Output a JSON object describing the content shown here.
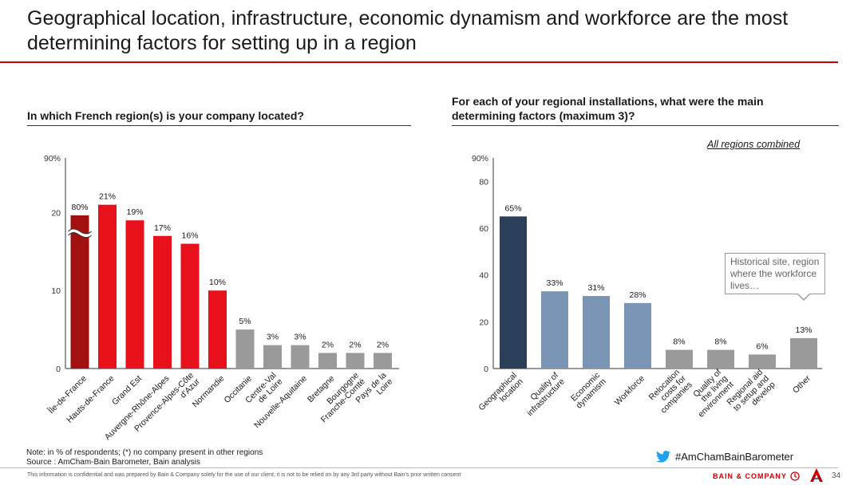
{
  "title": "Geographical location, infrastructure, economic dynamism and workforce are the most determining factors for setting up in a region",
  "left_question": "In which French region(s) is your company located?",
  "right_question": "For each of your regional installations, what were the main determining factors (maximum 3)?",
  "right_subnote": "All regions combined",
  "callout_text": "Historical site, region where the workforce lives…",
  "note_line1": "Note: in % of respondents; (*) no company present in other regions",
  "note_line2": "Source : AmCham-Bain Barometer, Bain analysis",
  "hashtag": "#AmChamBainBarometer",
  "disclaimer": "This information is confidential and was prepared by Bain & Company solely for the use of our client; it is not to be relied on by any 3rd party without Bain's prior written consent",
  "brand": "BAIN & COMPANY",
  "page_number": "34",
  "icons": {
    "twitter": "bird-icon",
    "brand": "bain-logo-icon",
    "partner": "amcham-logo-icon"
  },
  "colors": {
    "dark_red": "#a31010",
    "red": "#e8101a",
    "gray": "#9a9a9a",
    "navy": "#2a4058",
    "steel": "#7a94b3",
    "rule_red": "#cc0000"
  },
  "chart_data": [
    {
      "type": "bar",
      "axis_break": true,
      "categories": [
        "Île-de-France",
        "Hauts-de-France",
        "Grand Est",
        "Auvergne-Rhône-Alpes",
        "Provence-Alpes-Côte d'Azur",
        "Normandie",
        "Occitanie",
        "Centre-Val de Loire",
        "Nouvelle-Aquitaine",
        "Bretagne",
        "Bourgogne Franche-Comté",
        "Pays de la Loire"
      ],
      "values": [
        80,
        21,
        19,
        17,
        16,
        10,
        5,
        3,
        3,
        2,
        2,
        2
      ],
      "value_labels": [
        "80%",
        "21%",
        "19%",
        "17%",
        "16%",
        "10%",
        "5%",
        "3%",
        "3%",
        "2%",
        "2%",
        "2%"
      ],
      "colors": [
        "#a31010",
        "#e8101a",
        "#e8101a",
        "#e8101a",
        "#e8101a",
        "#e8101a",
        "#9a9a9a",
        "#9a9a9a",
        "#9a9a9a",
        "#9a9a9a",
        "#9a9a9a",
        "#9a9a9a"
      ],
      "yticks": [
        0,
        10,
        20
      ],
      "ytick_labels": [
        "0",
        "10",
        "20"
      ],
      "ytop_label": "90%",
      "ylim": [
        0,
        27
      ],
      "grid": false
    },
    {
      "type": "bar",
      "categories": [
        "Geographical location",
        "Quality of infrastructure",
        "Economic dynamism",
        "Workforce",
        "Relocation costs for companies",
        "Quality of the living environment",
        "Regional aid to setup and develop",
        "Other"
      ],
      "values": [
        65,
        33,
        31,
        28,
        8,
        8,
        6,
        13
      ],
      "value_labels": [
        "65%",
        "33%",
        "31%",
        "28%",
        "8%",
        "8%",
        "6%",
        "13%"
      ],
      "colors": [
        "#2a4058",
        "#7a94b3",
        "#7a94b3",
        "#7a94b3",
        "#9a9a9a",
        "#9a9a9a",
        "#9a9a9a",
        "#9a9a9a"
      ],
      "yticks": [
        0,
        20,
        40,
        60,
        80
      ],
      "ytick_labels": [
        "0",
        "20",
        "40",
        "60",
        "80"
      ],
      "ytop_label": "90%",
      "ylim": [
        0,
        90
      ],
      "grid": false
    }
  ]
}
